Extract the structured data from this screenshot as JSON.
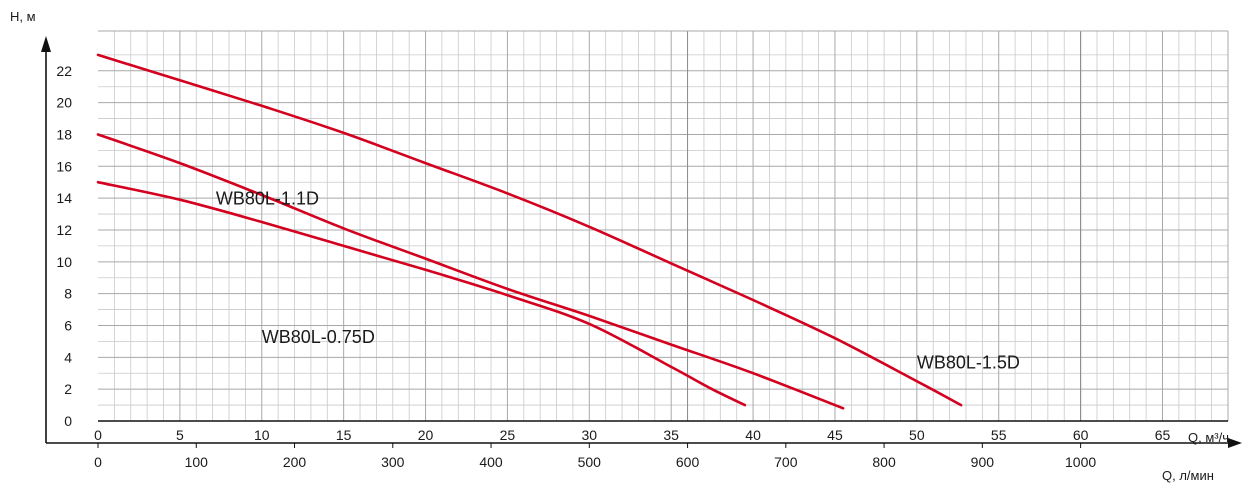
{
  "chart_data": {
    "type": "line",
    "ylabel": "H, м",
    "xlabel": "Q, м³/ч",
    "xlabel_secondary": "Q, л/мин",
    "xlim": [
      0,
      69
    ],
    "ylim": [
      0,
      24.5
    ],
    "x_ticks": [
      0,
      5,
      10,
      15,
      20,
      25,
      30,
      35,
      40,
      45,
      50,
      55,
      60,
      65
    ],
    "y_ticks": [
      0,
      2,
      4,
      6,
      8,
      10,
      12,
      14,
      16,
      18,
      20,
      22
    ],
    "x2_ticks": [
      0,
      100,
      200,
      300,
      400,
      500,
      600,
      700,
      800,
      900,
      1000
    ],
    "x2_per_x": 16.6667,
    "grid": true,
    "line_color": "#d3001f",
    "series": [
      {
        "name": "WB80L-0.75D",
        "label_at": [
          10,
          4.9
        ],
        "points": [
          [
            0,
            15
          ],
          [
            5,
            13.9
          ],
          [
            10,
            12.5
          ],
          [
            15,
            11
          ],
          [
            20,
            9.5
          ],
          [
            25,
            7.9
          ],
          [
            30,
            6.1
          ],
          [
            35,
            3.4
          ],
          [
            37.5,
            2
          ],
          [
            39.5,
            1
          ]
        ]
      },
      {
        "name": "WB80L-1.1D",
        "label_at": [
          7.2,
          13.6
        ],
        "points": [
          [
            0,
            18
          ],
          [
            5,
            16.2
          ],
          [
            10,
            14.2
          ],
          [
            15,
            12.1
          ],
          [
            20,
            10.2
          ],
          [
            25,
            8.3
          ],
          [
            30,
            6.6
          ],
          [
            35,
            4.8
          ],
          [
            40,
            3
          ],
          [
            45.5,
            0.8
          ]
        ]
      },
      {
        "name": "WB80L-1.5D",
        "label_at": [
          50,
          3.3
        ],
        "points": [
          [
            0,
            23
          ],
          [
            5,
            21.4
          ],
          [
            10,
            19.8
          ],
          [
            15,
            18.1
          ],
          [
            20,
            16.2
          ],
          [
            25,
            14.3
          ],
          [
            30,
            12.2
          ],
          [
            35,
            9.9
          ],
          [
            40,
            7.6
          ],
          [
            45,
            5.2
          ],
          [
            50,
            2.5
          ],
          [
            52.7,
            1
          ]
        ]
      }
    ]
  }
}
